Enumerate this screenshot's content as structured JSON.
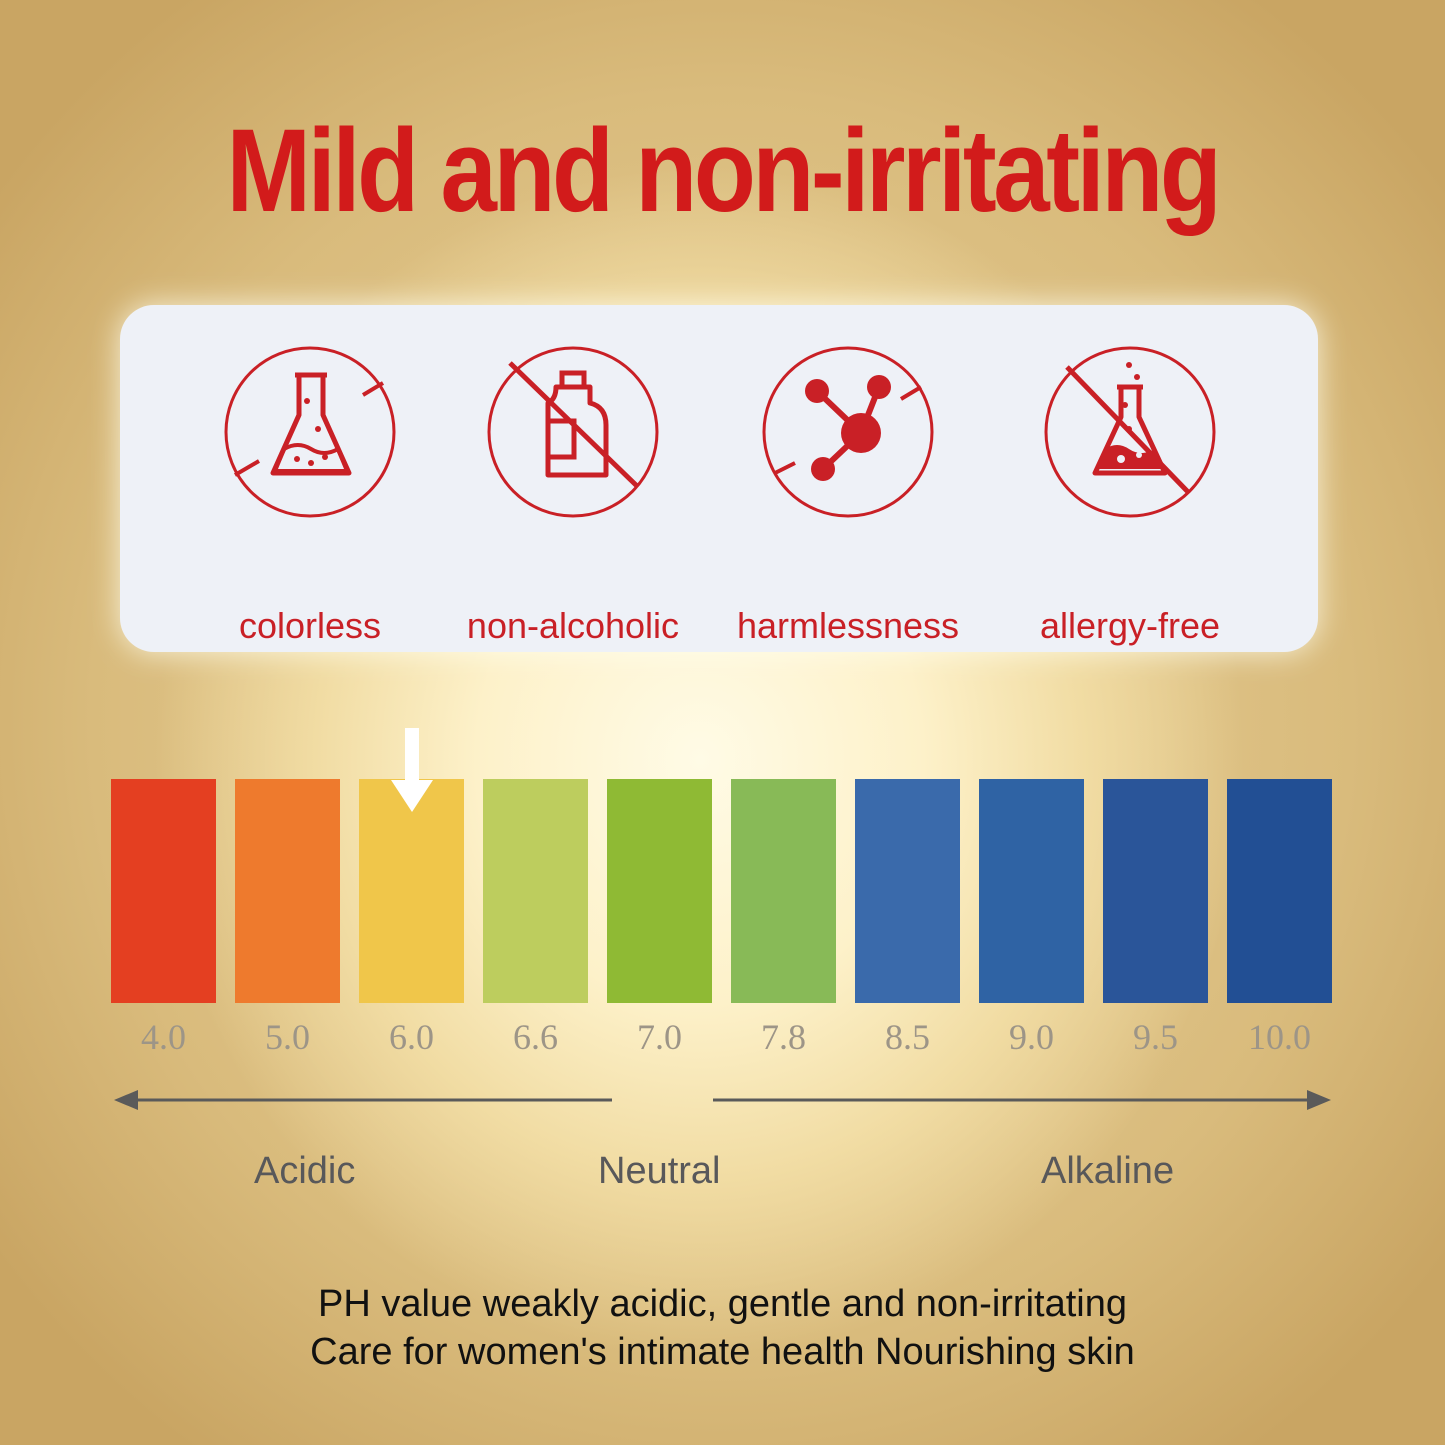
{
  "headline": "Mild and non-irritating",
  "features": [
    {
      "label": "colorless",
      "icon": "flask-icon"
    },
    {
      "label": "non-alcoholic",
      "icon": "no-alcohol-bottle-icon"
    },
    {
      "label": "harmlessness",
      "icon": "molecule-icon"
    },
    {
      "label": "allergy-free",
      "icon": "no-chemical-flask-icon"
    }
  ],
  "ph_scale": {
    "values": [
      "4.0",
      "5.0",
      "6.0",
      "6.6",
      "7.0",
      "7.8",
      "8.5",
      "9.0",
      "9.5",
      "10.0"
    ],
    "colors": [
      "#e43f21",
      "#ee7a2d",
      "#f0c64a",
      "#bdcd5e",
      "#8fba34",
      "#88ba57",
      "#3a6aab",
      "#2f63a4",
      "#2a5599",
      "#224f94"
    ],
    "indicated_value": "6.0",
    "regions": {
      "acidic": "Acidic",
      "neutral": "Neutral",
      "alkaline": "Alkaline"
    }
  },
  "caption": {
    "line1": "PH value weakly acidic, gentle and non-irritating",
    "line2": "Care for women's intimate health Nourishing skin"
  },
  "colors": {
    "accent_red": "#d21b1b",
    "icon_red": "#c92026",
    "panel_bg": "#eef1f7"
  }
}
